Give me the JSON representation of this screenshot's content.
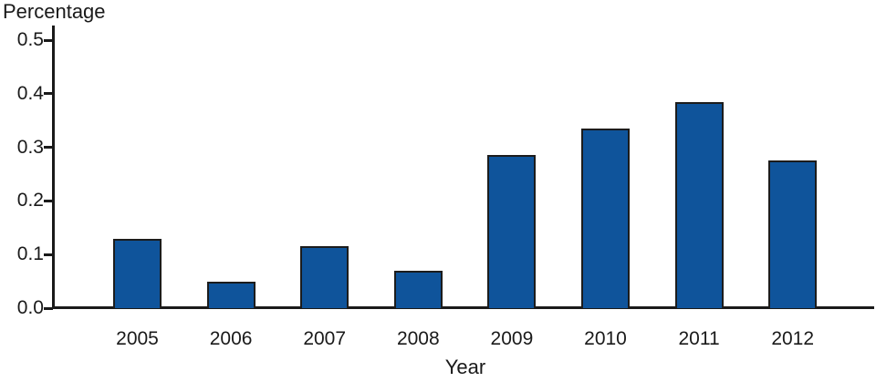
{
  "chart_data": {
    "type": "bar",
    "title": "",
    "ylabel": "Percentage",
    "xlabel": "Year",
    "categories": [
      "2005",
      "2006",
      "2007",
      "2008",
      "2009",
      "2010",
      "2011",
      "2012"
    ],
    "values": [
      0.13,
      0.05,
      0.115,
      0.07,
      0.285,
      0.335,
      0.385,
      0.275
    ],
    "ytick_labels": [
      "0.0",
      "0.1",
      "0.2",
      "0.3",
      "0.4",
      "0.5"
    ],
    "ylim": [
      0,
      0.5
    ],
    "grid": false,
    "legend": null,
    "bar_color": "#0f549b",
    "bar_border_color": "#1c1c1c",
    "axis_color": "#1a1a1a"
  }
}
